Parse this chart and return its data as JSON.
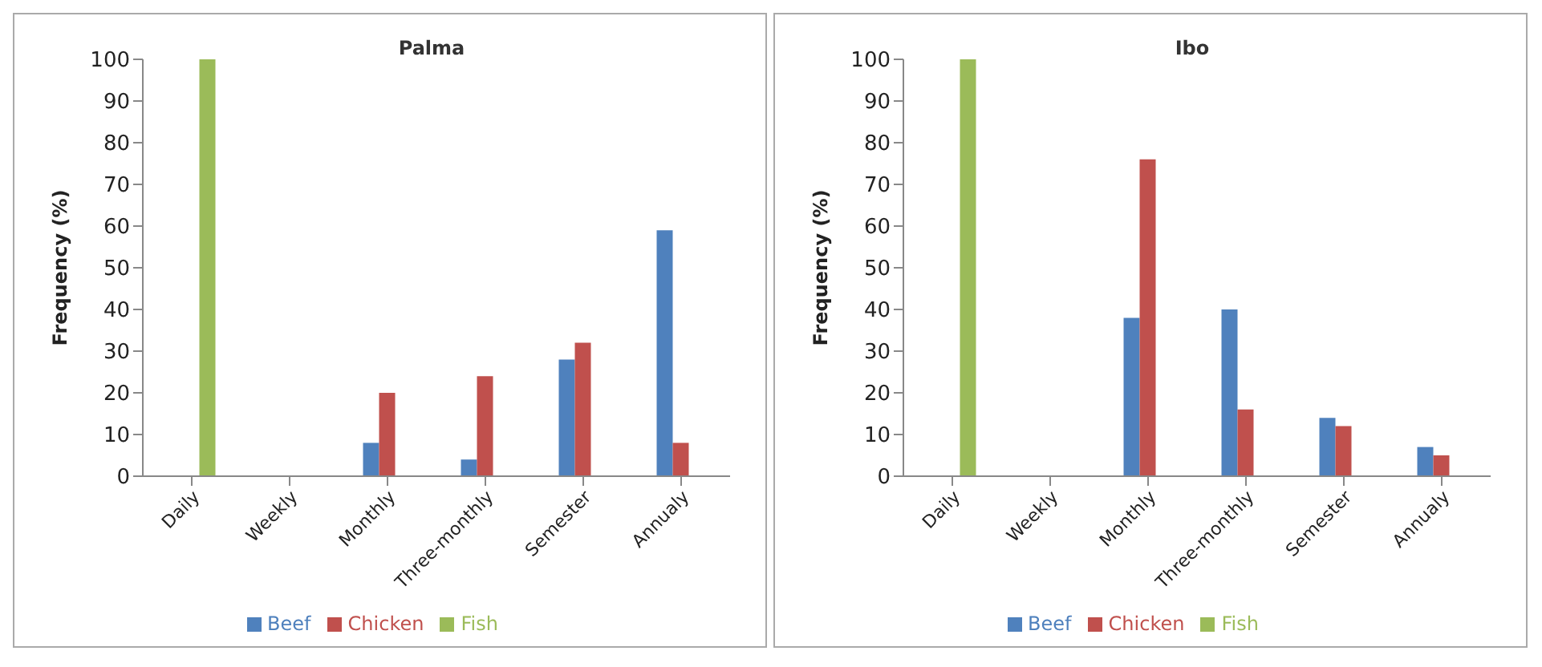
{
  "chart_data": [
    {
      "type": "bar",
      "title": "Palma",
      "ylabel": "Frequency (%)",
      "categories": [
        "Daily",
        "Weekly",
        "Monthly",
        "Three-monthly",
        "Semester",
        "Annualy"
      ],
      "ylim": [
        0,
        100
      ],
      "yticks": [
        0,
        10,
        20,
        30,
        40,
        50,
        60,
        70,
        80,
        90,
        100
      ],
      "grid": false,
      "legend": "bottom",
      "series": [
        {
          "name": "Beef",
          "color": "#4f81bd",
          "values": [
            null,
            null,
            8,
            4,
            28,
            59
          ]
        },
        {
          "name": "Chicken",
          "color": "#c0504d",
          "values": [
            null,
            null,
            20,
            24,
            32,
            8
          ]
        },
        {
          "name": "Fish",
          "color": "#9bbb59",
          "values": [
            100,
            null,
            null,
            null,
            null,
            null
          ]
        }
      ]
    },
    {
      "type": "bar",
      "title": "Ibo",
      "ylabel": "Frequency (%)",
      "categories": [
        "Daily",
        "Weekly",
        "Monthly",
        "Three-monthly",
        "Semester",
        "Annualy"
      ],
      "ylim": [
        0,
        100
      ],
      "yticks": [
        0,
        10,
        20,
        30,
        40,
        50,
        60,
        70,
        80,
        90,
        100
      ],
      "grid": false,
      "legend": "bottom",
      "series": [
        {
          "name": "Beef",
          "color": "#4f81bd",
          "values": [
            null,
            null,
            38,
            40,
            14,
            7
          ]
        },
        {
          "name": "Chicken",
          "color": "#c0504d",
          "values": [
            null,
            null,
            76,
            16,
            12,
            5
          ]
        },
        {
          "name": "Fish",
          "color": "#9bbb59",
          "values": [
            100,
            null,
            null,
            null,
            null,
            null
          ]
        }
      ]
    }
  ]
}
